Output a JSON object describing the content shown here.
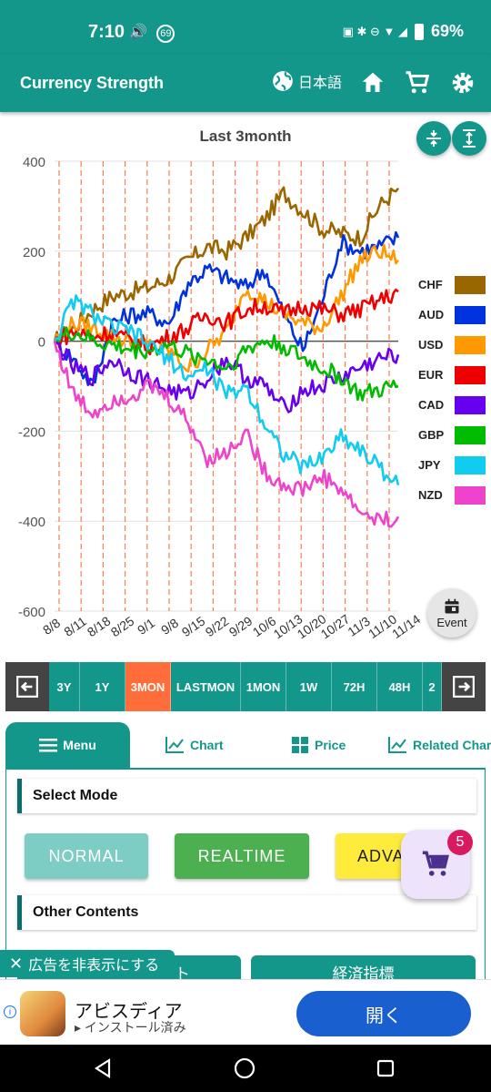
{
  "status_bar": {
    "time": "7:10",
    "notif_badge": "69",
    "battery": "69%"
  },
  "app_bar": {
    "title": "Currency Strength",
    "language": "日本語"
  },
  "chart_data": {
    "type": "line",
    "title": "Last 3month",
    "ylim": [
      -600,
      400
    ],
    "yticks": [
      "400",
      "200",
      "0",
      "-200",
      "-400",
      "-600"
    ],
    "x_tick_labels": [
      "8/8",
      "8/11",
      "8/18",
      "8/25",
      "9/1",
      "9/8",
      "9/15",
      "9/22",
      "9/29",
      "10/6",
      "10/13",
      "10/20",
      "10/27",
      "11/3",
      "11/10",
      "11/14"
    ],
    "series": [
      {
        "name": "CHF",
        "color": "#996600",
        "values": [
          0,
          30,
          70,
          100,
          110,
          120,
          140,
          180,
          210,
          200,
          230,
          270,
          330,
          290,
          250,
          240,
          230,
          300,
          340
        ]
      },
      {
        "name": "AUD",
        "color": "#0033dd",
        "values": [
          0,
          -40,
          -100,
          40,
          60,
          60,
          40,
          130,
          160,
          140,
          120,
          160,
          60,
          -20,
          90,
          220,
          200,
          210,
          230
        ]
      },
      {
        "name": "USD",
        "color": "#ff9900",
        "values": [
          0,
          40,
          30,
          10,
          0,
          -10,
          -20,
          -60,
          -20,
          20,
          120,
          90,
          60,
          40,
          30,
          100,
          180,
          200,
          180
        ]
      },
      {
        "name": "EUR",
        "color": "#ee0000",
        "values": [
          0,
          20,
          10,
          20,
          0,
          -10,
          10,
          30,
          60,
          40,
          70,
          80,
          60,
          80,
          70,
          60,
          70,
          90,
          110
        ]
      },
      {
        "name": "CAD",
        "color": "#6600ee",
        "values": [
          0,
          -60,
          -80,
          -40,
          -70,
          -90,
          -110,
          -120,
          -80,
          -40,
          -80,
          -100,
          -150,
          -110,
          -100,
          -80,
          -60,
          -40,
          -30
        ]
      },
      {
        "name": "GBP",
        "color": "#00bb00",
        "values": [
          0,
          20,
          0,
          -10,
          -20,
          -20,
          -10,
          -30,
          -40,
          -60,
          -20,
          0,
          -10,
          -40,
          -60,
          -80,
          -120,
          -110,
          -100
        ]
      },
      {
        "name": "JPY",
        "color": "#11ccee",
        "values": [
          0,
          90,
          60,
          30,
          20,
          -10,
          -40,
          -80,
          -60,
          -120,
          -100,
          -180,
          -250,
          -280,
          -260,
          -210,
          -240,
          -280,
          -320
        ]
      },
      {
        "name": "NZD",
        "color": "#ee44cc",
        "values": [
          0,
          -120,
          -160,
          -130,
          -120,
          -100,
          -130,
          -180,
          -260,
          -250,
          -200,
          -290,
          -320,
          -330,
          -300,
          -330,
          -380,
          -400,
          -390
        ]
      }
    ]
  },
  "event_button": {
    "label": "Event"
  },
  "periods": [
    {
      "label": "3Y",
      "active": false
    },
    {
      "label": "1Y",
      "active": false
    },
    {
      "label": "3MON",
      "active": true
    },
    {
      "label": "LASTMON",
      "active": false
    },
    {
      "label": "1MON",
      "active": false
    },
    {
      "label": "1W",
      "active": false
    },
    {
      "label": "72H",
      "active": false
    },
    {
      "label": "48H",
      "active": false
    },
    {
      "label": "2",
      "active": false
    }
  ],
  "tabs": {
    "menu": "Menu",
    "chart": "Chart",
    "price": "Price",
    "related": "Related Char"
  },
  "panel": {
    "select_mode": "Select Mode",
    "mode_normal": "NORMAL",
    "mode_realtime": "REALTIME",
    "mode_advanced": "ADVA",
    "other_contents": "Other Contents",
    "content_left": "ト",
    "content_right": "経済指標"
  },
  "cart_badge": "5",
  "hide_ad": "広告を非表示にする",
  "ad": {
    "name": "アビスディア",
    "sub": "インストール済み",
    "open": "開く"
  },
  "colors": {
    "primary": "#13978a",
    "active_period": "#ff6e3a",
    "normal": "#7ecdc4",
    "realtime": "#4caf50",
    "advanced": "#ffeb3b"
  }
}
